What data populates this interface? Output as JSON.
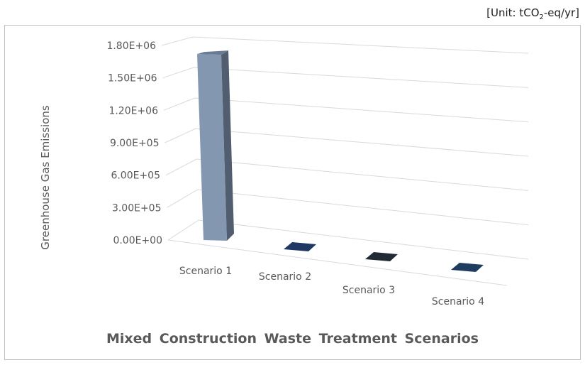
{
  "unit_prefix": "[Unit: tCO",
  "unit_sub": "2",
  "unit_suffix": "-eq/yr]",
  "chart_data": {
    "type": "bar",
    "style": "3d-column",
    "title": "Mixed Construction Waste Treatment Scenarios",
    "xlabel": "Mixed Construction Waste Treatment Scenarios",
    "ylabel": "Greenhouse Gas Emissions",
    "categories": [
      "Scenario 1",
      "Scenario 2",
      "Scenario 3",
      "Scenario 4"
    ],
    "values": [
      1720000,
      2000,
      2000,
      2000
    ],
    "colors": [
      "#8497b0",
      "#203864",
      "#222a35",
      "#1f3d60"
    ],
    "ylim": [
      0,
      1800000
    ],
    "yticks": [
      "0.00E+00",
      "3.00E+05",
      "6.00E+05",
      "9.00E+05",
      "1.20E+06",
      "1.50E+06",
      "1.80E+06"
    ],
    "grid": true
  }
}
